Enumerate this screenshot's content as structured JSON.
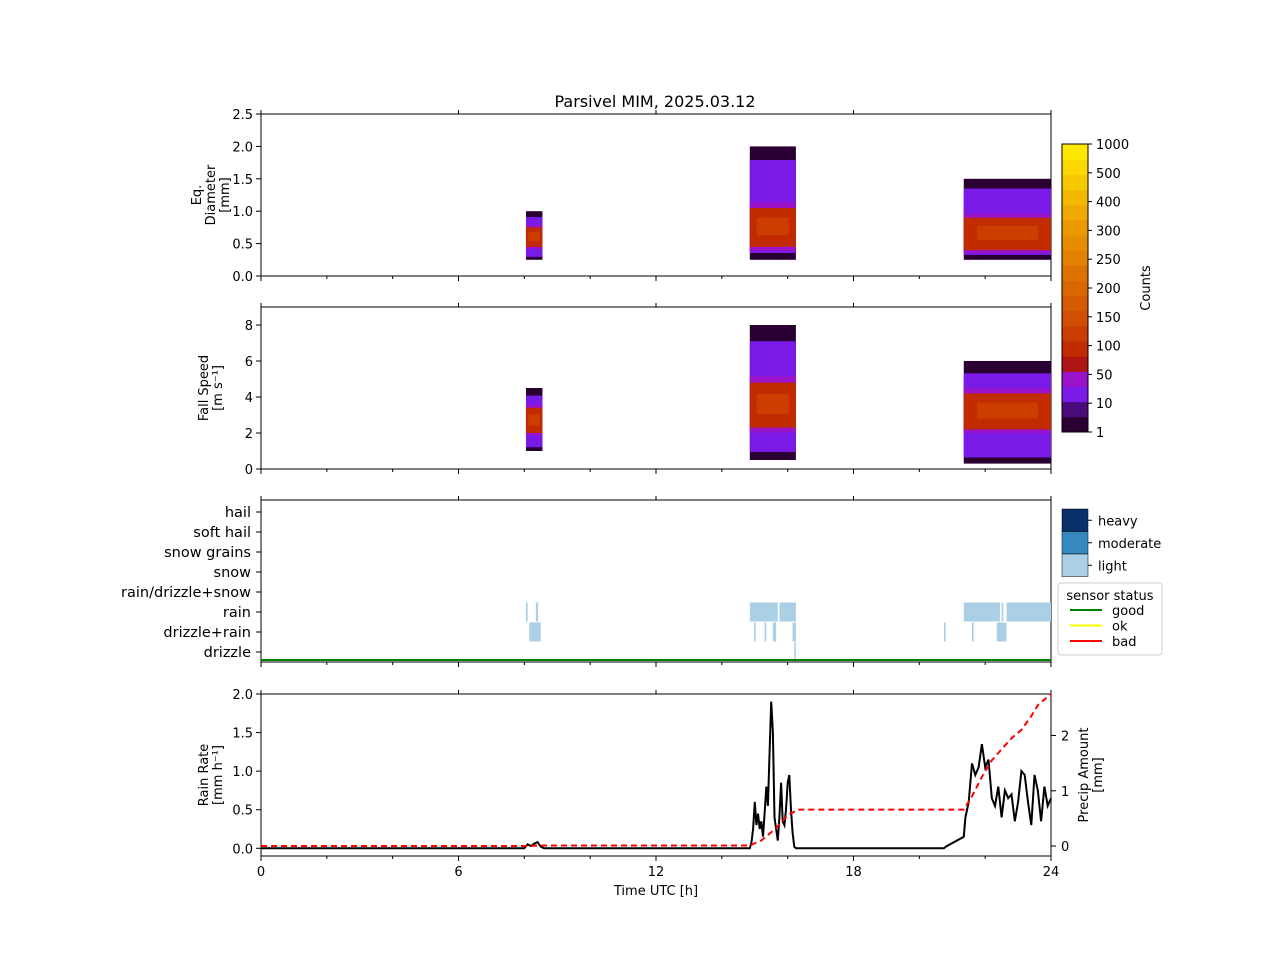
{
  "title": "Parsivel MIM, 2025.03.12",
  "xlabel": "Time UTC [h]",
  "xlim": [
    0,
    24
  ],
  "xticks": [
    0,
    6,
    12,
    18,
    24
  ],
  "colors": {
    "trace_line": "#000000",
    "cumulative_line": "#ff0000",
    "good": "#008000",
    "ok": "#ffff00",
    "bad": "#ff0000",
    "light": "#abd0e6",
    "moderate": "#3787c0",
    "heavy": "#08306b"
  },
  "colorbar": {
    "label": "Counts",
    "ticks": [
      "1",
      "10",
      "50",
      "100",
      "150",
      "200",
      "250",
      "300",
      "400",
      "500",
      "1000"
    ],
    "colors": [
      "#2a0033",
      "#4a0a7a",
      "#7a1ae6",
      "#9a12c9",
      "#b01515",
      "#c22a00",
      "#cc3d00",
      "#d24e00",
      "#d65a00",
      "#da6600",
      "#de7200",
      "#e28000",
      "#e68c00",
      "#ea9a00",
      "#eea800",
      "#f2b800",
      "#f6c800",
      "#fad800",
      "#fee800"
    ]
  },
  "precip_type": {
    "categories": [
      "drizzle",
      "drizzle+rain",
      "rain",
      "rain/drizzle+snow",
      "snow",
      "snow grains",
      "soft hail",
      "hail"
    ],
    "intensity_legend": [
      "heavy",
      "moderate",
      "light"
    ],
    "status_legend": {
      "title": "sensor status",
      "items": [
        "good",
        "ok",
        "bad"
      ]
    }
  },
  "chart_data": [
    {
      "type": "heatmap",
      "ylabel": [
        "Eq.",
        "Diameter",
        "[mm]"
      ],
      "ylim": [
        0,
        2.5
      ],
      "yticks": [
        "0.0",
        "0.5",
        "1.0",
        "1.5",
        "2.0",
        "2.5"
      ],
      "events": [
        {
          "start": 8.05,
          "end": 8.55,
          "low": 0.25,
          "high": 1.0,
          "core_low": 0.45,
          "core_high": 0.75
        },
        {
          "start": 14.85,
          "end": 16.25,
          "low": 0.25,
          "high": 2.0,
          "core_low": 0.45,
          "core_high": 1.05
        },
        {
          "start": 21.35,
          "end": 24.0,
          "low": 0.25,
          "high": 1.5,
          "core_low": 0.4,
          "core_high": 0.9
        }
      ]
    },
    {
      "type": "heatmap",
      "ylabel": [
        "Fall Speed",
        "[m s⁻¹]"
      ],
      "ylim": [
        0,
        9
      ],
      "yticks": [
        "0",
        "2",
        "4",
        "6",
        "8"
      ],
      "events": [
        {
          "start": 8.05,
          "end": 8.55,
          "low": 1.0,
          "high": 4.5,
          "core_low": 2.0,
          "core_high": 3.4
        },
        {
          "start": 14.85,
          "end": 16.25,
          "low": 0.5,
          "high": 8.0,
          "core_low": 2.3,
          "core_high": 4.8
        },
        {
          "start": 21.35,
          "end": 24.0,
          "low": 0.3,
          "high": 6.0,
          "core_low": 2.2,
          "core_high": 4.2
        }
      ]
    },
    {
      "type": "heatmap",
      "ylabel": [],
      "segments": [
        {
          "category": "rain",
          "start": 8.05,
          "end": 8.1,
          "intensity": "light"
        },
        {
          "category": "rain",
          "start": 8.35,
          "end": 8.42,
          "intensity": "light"
        },
        {
          "category": "drizzle+rain",
          "start": 8.15,
          "end": 8.5,
          "intensity": "light"
        },
        {
          "category": "rain",
          "start": 14.85,
          "end": 15.7,
          "intensity": "light"
        },
        {
          "category": "rain",
          "start": 15.75,
          "end": 16.25,
          "intensity": "light"
        },
        {
          "category": "drizzle+rain",
          "start": 14.98,
          "end": 15.03,
          "intensity": "light"
        },
        {
          "category": "drizzle+rain",
          "start": 15.3,
          "end": 15.35,
          "intensity": "light"
        },
        {
          "category": "drizzle+rain",
          "start": 15.55,
          "end": 15.65,
          "intensity": "light"
        },
        {
          "category": "drizzle+rain",
          "start": 16.15,
          "end": 16.25,
          "intensity": "light"
        },
        {
          "category": "drizzle",
          "start": 16.2,
          "end": 16.25,
          "intensity": "light"
        },
        {
          "category": "drizzle+rain",
          "start": 20.75,
          "end": 20.8,
          "intensity": "light"
        },
        {
          "category": "rain",
          "start": 21.35,
          "end": 22.45,
          "intensity": "light"
        },
        {
          "category": "rain",
          "start": 22.5,
          "end": 22.55,
          "intensity": "light"
        },
        {
          "category": "rain",
          "start": 22.65,
          "end": 24.0,
          "intensity": "light"
        },
        {
          "category": "drizzle+rain",
          "start": 21.6,
          "end": 21.65,
          "intensity": "light"
        },
        {
          "category": "drizzle+rain",
          "start": 22.35,
          "end": 22.65,
          "intensity": "light"
        }
      ],
      "status": {
        "value": "good",
        "start": 0,
        "end": 24
      }
    },
    {
      "type": "line",
      "ylabel": [
        "Rain Rate",
        "[mm h⁻¹]"
      ],
      "ylim": [
        -0.1,
        2.0
      ],
      "yticks": [
        "0.0",
        "0.5",
        "1.0",
        "1.5",
        "2.0"
      ],
      "y2label": [
        "Precip Amount",
        "[mm]"
      ],
      "y2lim": [
        -0.18,
        2.75
      ],
      "y2ticks": [
        "0",
        "1",
        "2"
      ],
      "series": [
        {
          "x": [
            0,
            8.0,
            8.1,
            8.2,
            8.3,
            8.4,
            8.5,
            8.6,
            14.85,
            14.9,
            14.95,
            15.0,
            15.05,
            15.1,
            15.15,
            15.2,
            15.25,
            15.3,
            15.35,
            15.4,
            15.45,
            15.5,
            15.55,
            15.6,
            15.65,
            15.7,
            15.75,
            15.8,
            15.85,
            15.9,
            15.95,
            16.0,
            16.05,
            16.1,
            16.15,
            16.2,
            16.25,
            16.3,
            20.75,
            20.8,
            21.35,
            21.4,
            21.5,
            21.6,
            21.7,
            21.8,
            21.9,
            22.0,
            22.1,
            22.2,
            22.3,
            22.4,
            22.5,
            22.6,
            22.7,
            22.8,
            22.9,
            23.0,
            23.1,
            23.2,
            23.3,
            23.4,
            23.5,
            23.6,
            23.7,
            23.8,
            23.9,
            24.0
          ],
          "y": [
            0,
            0,
            0.05,
            0.03,
            0.06,
            0.08,
            0.02,
            0,
            0,
            0.08,
            0.25,
            0.6,
            0.3,
            0.45,
            0.25,
            0.35,
            0.15,
            0.45,
            0.8,
            0.55,
            1.25,
            1.9,
            1.5,
            0.4,
            0.25,
            0.1,
            0.4,
            0.85,
            0.35,
            0.3,
            0.5,
            0.85,
            0.95,
            0.5,
            0.2,
            0.02,
            0,
            0,
            0,
            0.02,
            0.15,
            0.4,
            0.6,
            1.1,
            0.95,
            1.05,
            1.35,
            1.05,
            1.15,
            0.65,
            0.55,
            0.8,
            0.4,
            0.75,
            0.65,
            0.7,
            0.35,
            0.6,
            1.0,
            0.95,
            0.6,
            0.3,
            0.95,
            0.75,
            0.35,
            0.8,
            0.55,
            0.65
          ]
        },
        {
          "axis": "right",
          "x": [
            0,
            8.0,
            8.6,
            14.85,
            15.2,
            15.6,
            16.0,
            16.3,
            20.75,
            21.35,
            21.6,
            21.9,
            22.2,
            22.5,
            22.8,
            23.1,
            23.4,
            23.6,
            23.9,
            24.0
          ],
          "y": [
            0,
            0,
            0.01,
            0.01,
            0.1,
            0.3,
            0.55,
            0.66,
            0.66,
            0.66,
            0.9,
            1.25,
            1.55,
            1.75,
            1.95,
            2.1,
            2.35,
            2.55,
            2.7,
            2.75
          ]
        }
      ]
    }
  ]
}
